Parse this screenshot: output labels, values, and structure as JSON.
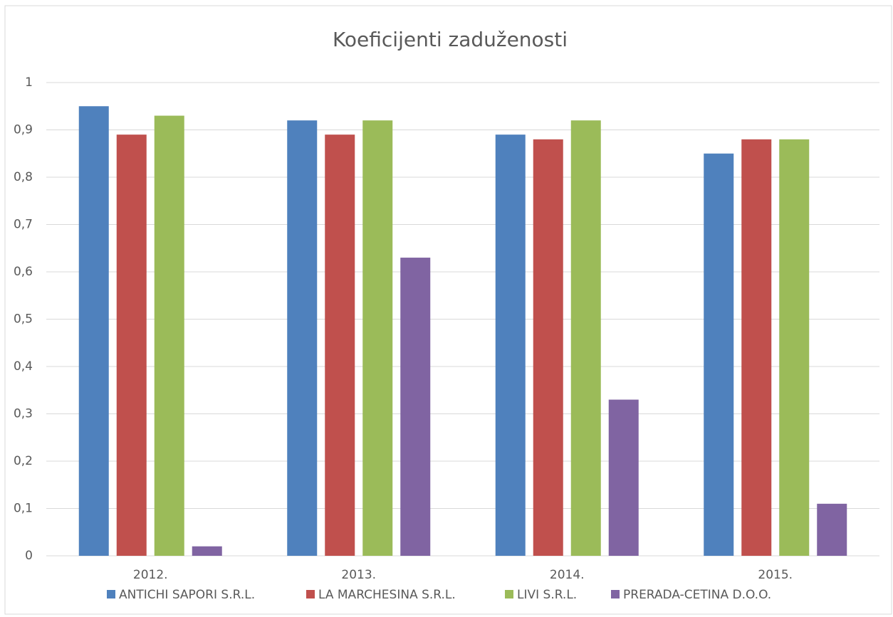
{
  "chart_data": {
    "type": "bar",
    "title": "Koeficijenti zaduženosti",
    "categories": [
      "2012.",
      "2013.",
      "2014.",
      "2015."
    ],
    "series": [
      {
        "name": "ANTICHI SAPORI S.R.L.",
        "color": "#4f81bd",
        "values": [
          0.95,
          0.92,
          0.89,
          0.85
        ]
      },
      {
        "name": "LA MARCHESINA S.R.L.",
        "color": "#c0504d",
        "values": [
          0.89,
          0.89,
          0.88,
          0.88
        ]
      },
      {
        "name": "LIVI S.R.L.",
        "color": "#9bbb59",
        "values": [
          0.93,
          0.92,
          0.92,
          0.88
        ]
      },
      {
        "name": "PRERADA-CETINA D.O.O.",
        "color": "#8064a2",
        "values": [
          0.02,
          0.63,
          0.33,
          0.11
        ]
      }
    ],
    "ylim": [
      0,
      1
    ],
    "yticks": [
      0,
      {
        "value": 0.1,
        "label": "0,1"
      },
      {
        "value": 0.2,
        "label": "0,2"
      },
      {
        "value": 0.3,
        "label": "0,3"
      },
      {
        "value": 0.4,
        "label": "0,4"
      },
      {
        "value": 0.5,
        "label": "0,5"
      },
      {
        "value": 0.6,
        "label": "0,6"
      },
      {
        "value": 0.7,
        "label": "0,7"
      },
      {
        "value": 0.8,
        "label": "0,8"
      },
      {
        "value": 0.9,
        "label": "0,9"
      },
      1
    ],
    "grid": true,
    "legend": "bottom"
  }
}
